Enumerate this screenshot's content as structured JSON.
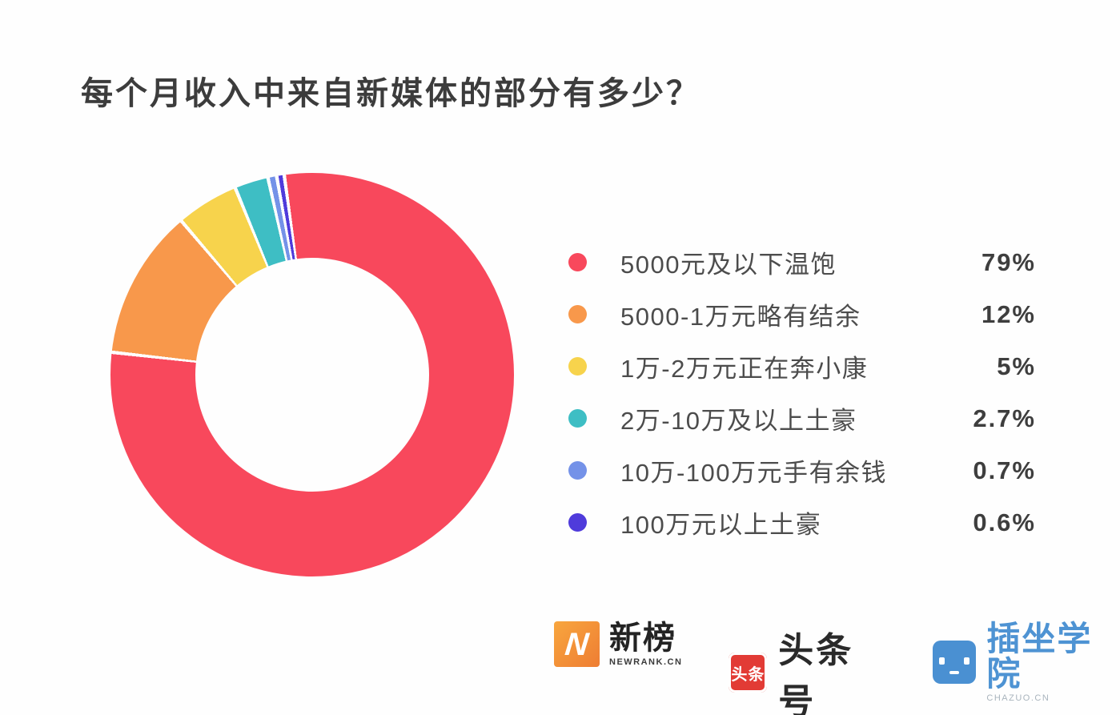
{
  "title": "每个月收入中来自新媒体的部分有多少？",
  "chart_data": {
    "type": "pie",
    "subtype": "donut",
    "title": "每个月收入中来自新媒体的部分有多少？",
    "categories": [
      "5000元及以下温饱",
      "5000-1万元略有结余",
      "1万-2万元正在奔小康",
      "2万-10万及以上土豪",
      "10万-100万元手有余钱",
      "100万元以上土豪"
    ],
    "values": [
      79,
      12,
      5,
      2.7,
      0.7,
      0.6
    ],
    "value_labels": [
      "79%",
      "12%",
      "5%",
      "2.7%",
      "0.7%",
      "0.6%"
    ],
    "colors": [
      "#f8485c",
      "#f8984b",
      "#f7d34c",
      "#3ebec4",
      "#7492e8",
      "#4f3bdb"
    ],
    "start_angle_deg": -8,
    "direction": "clockwise",
    "donut_hole_ratio": 0.58,
    "slice_gap_deg": 1.0,
    "legend_position": "right"
  },
  "legend": {
    "items": [
      {
        "label": "5000元及以下温饱",
        "value_label": "79%",
        "color": "#f8485c"
      },
      {
        "label": "5000-1万元略有结余",
        "value_label": "12%",
        "color": "#f8984b"
      },
      {
        "label": "1万-2万元正在奔小康",
        "value_label": "5%",
        "color": "#f7d34c"
      },
      {
        "label": "2万-10万及以上土豪",
        "value_label": "2.7%",
        "color": "#3ebec4"
      },
      {
        "label": "10万-100万元手有余钱",
        "value_label": "0.7%",
        "color": "#7492e8"
      },
      {
        "label": "100万元以上土豪",
        "value_label": "0.6%",
        "color": "#4f3bdb"
      }
    ]
  },
  "footer": {
    "logos": [
      {
        "name": "新榜",
        "subtext": "NEWRANK.CN",
        "icon": "newrank-n-icon",
        "icon_text": "N",
        "color": "#f28b36"
      },
      {
        "name": "头条号",
        "icon": "toutiao-icon",
        "icon_text": "头条",
        "color": "#e23b35"
      },
      {
        "name": "插坐学院",
        "subtext": "CHAZUO.CN",
        "icon": "chazuo-robot-icon",
        "color": "#4a90d2"
      }
    ]
  }
}
